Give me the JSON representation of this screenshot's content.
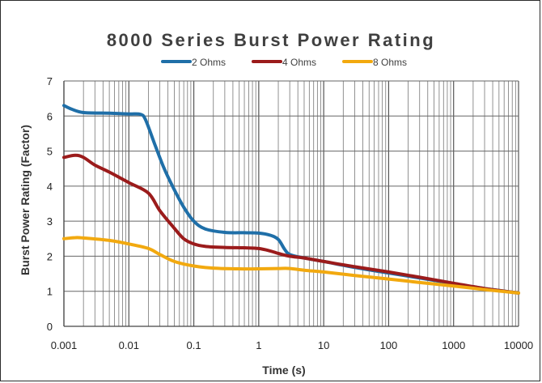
{
  "chart_data": {
    "type": "line",
    "title": "8000 Series Burst Power Rating",
    "xlabel": "Time (s)",
    "ylabel": "Burst Power Rating (Factor)",
    "x_scale": "log",
    "xlim": [
      0.001,
      10000
    ],
    "ylim": [
      0,
      7
    ],
    "x_tick_labels": [
      "0.001",
      "0.01",
      "0.1",
      "1",
      "10",
      "100",
      "1000",
      "10000"
    ],
    "y_tick_labels": [
      "0",
      "1",
      "2",
      "3",
      "4",
      "5",
      "6",
      "7"
    ],
    "grid": true,
    "legend_position": "top",
    "series": [
      {
        "name": "2 Ohms",
        "color": "#1f6fa8",
        "x": [
          0.001,
          0.0013,
          0.002,
          0.005,
          0.01,
          0.015,
          0.018,
          0.025,
          0.035,
          0.05,
          0.07,
          0.1,
          0.15,
          0.3,
          0.6,
          1,
          1.5,
          2,
          2.5,
          3,
          5,
          10,
          30,
          100,
          300,
          1000,
          3000,
          10000
        ],
        "y": [
          6.3,
          6.2,
          6.1,
          6.08,
          6.06,
          6.05,
          5.9,
          5.2,
          4.5,
          3.9,
          3.4,
          3.0,
          2.78,
          2.68,
          2.67,
          2.66,
          2.6,
          2.48,
          2.2,
          2.05,
          1.95,
          1.85,
          1.68,
          1.52,
          1.38,
          1.22,
          1.08,
          0.95
        ]
      },
      {
        "name": "4 Ohms",
        "color": "#9b1b1b",
        "x": [
          0.001,
          0.0015,
          0.002,
          0.003,
          0.005,
          0.01,
          0.02,
          0.03,
          0.05,
          0.07,
          0.1,
          0.15,
          0.3,
          0.6,
          1,
          1.5,
          2,
          3,
          5,
          10,
          30,
          100,
          300,
          1000,
          3000,
          10000
        ],
        "y": [
          4.82,
          4.88,
          4.82,
          4.6,
          4.4,
          4.1,
          3.8,
          3.3,
          2.8,
          2.5,
          2.35,
          2.28,
          2.25,
          2.24,
          2.22,
          2.15,
          2.08,
          2.0,
          1.95,
          1.85,
          1.7,
          1.55,
          1.4,
          1.23,
          1.08,
          0.95
        ]
      },
      {
        "name": "8 Ohms",
        "color": "#f2a90f",
        "x": [
          0.001,
          0.0015,
          0.002,
          0.005,
          0.01,
          0.02,
          0.03,
          0.05,
          0.1,
          0.2,
          0.5,
          1,
          2,
          3,
          5,
          10,
          30,
          100,
          300,
          1000,
          3000,
          10000
        ],
        "y": [
          2.5,
          2.53,
          2.52,
          2.45,
          2.35,
          2.22,
          2.05,
          1.85,
          1.72,
          1.66,
          1.64,
          1.64,
          1.65,
          1.65,
          1.6,
          1.55,
          1.45,
          1.35,
          1.25,
          1.15,
          1.05,
          0.95
        ]
      }
    ]
  }
}
